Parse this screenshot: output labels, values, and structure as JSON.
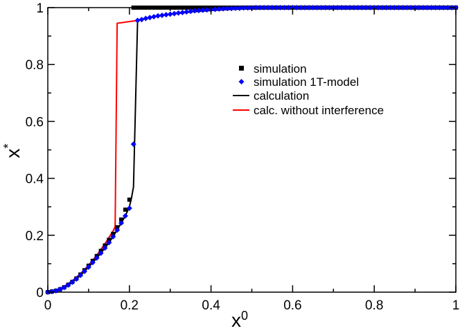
{
  "chart_data": {
    "type": "line",
    "title": "",
    "xlabel": "x",
    "xlabel_sup": "0",
    "ylabel": "x",
    "ylabel_sup": "*",
    "xlim": [
      0,
      1
    ],
    "ylim": [
      0,
      1
    ],
    "x_ticks": [
      0,
      0.2,
      0.4,
      0.6,
      0.8,
      1
    ],
    "x_tick_labels": [
      "0",
      "0.2",
      "0.4",
      "0.6",
      "0.8",
      "1"
    ],
    "y_ticks": [
      0,
      0.2,
      0.4,
      0.6,
      0.8,
      1
    ],
    "y_tick_labels": [
      "0",
      "0.2",
      "0.4",
      "0.6",
      "0.8",
      "1"
    ],
    "grid": false,
    "legend_position": "top-right",
    "series": [
      {
        "name": "simulation",
        "kind": "scatter",
        "marker": "square",
        "color": "#000000",
        "x": [
          0,
          0.01,
          0.02,
          0.03,
          0.04,
          0.05,
          0.06,
          0.07,
          0.08,
          0.09,
          0.1,
          0.11,
          0.12,
          0.13,
          0.14,
          0.15,
          0.16,
          0.17,
          0.18,
          0.19,
          0.2,
          0.21,
          0.22,
          0.23,
          0.24,
          0.25,
          0.26,
          0.27,
          0.28,
          0.29,
          0.3,
          0.31,
          0.32,
          0.33,
          0.34,
          0.35,
          0.36,
          0.37,
          0.38,
          0.39,
          0.4,
          0.41,
          0.42,
          0.43,
          0.44,
          0.45,
          0.46,
          0.47,
          0.48,
          0.49,
          0.5,
          0.51,
          0.52,
          0.53,
          0.54,
          0.55,
          0.56,
          0.57,
          0.58,
          0.59,
          0.6,
          0.61,
          0.62,
          0.63,
          0.64,
          0.65,
          0.66,
          0.67,
          0.68,
          0.69,
          0.7,
          0.71,
          0.72,
          0.73,
          0.74,
          0.75,
          0.76,
          0.77,
          0.78,
          0.79,
          0.8,
          0.81,
          0.82,
          0.83,
          0.84,
          0.85,
          0.86,
          0.87,
          0.88,
          0.89,
          0.9,
          0.91,
          0.92,
          0.93,
          0.94,
          0.95,
          0.96,
          0.97,
          0.98,
          0.99,
          1.0
        ],
        "y": [
          0,
          0.002,
          0.005,
          0.01,
          0.017,
          0.026,
          0.036,
          0.048,
          0.062,
          0.077,
          0.093,
          0.11,
          0.127,
          0.145,
          0.164,
          0.184,
          0.205,
          0.228,
          0.255,
          0.29,
          0.325,
          1,
          1,
          1,
          1,
          1,
          1,
          1,
          1,
          1,
          1,
          1,
          1,
          1,
          1,
          1,
          1,
          1,
          1,
          1,
          1,
          1,
          1,
          1,
          1,
          1,
          1,
          1,
          1,
          1,
          1,
          1,
          1,
          1,
          1,
          1,
          1,
          1,
          1,
          1,
          1,
          1,
          1,
          1,
          1,
          1,
          1,
          1,
          1,
          1,
          1,
          1,
          1,
          1,
          1,
          1,
          1,
          1,
          1,
          1,
          1,
          1,
          1,
          1,
          1,
          1,
          1,
          1,
          1,
          1,
          1,
          1,
          1,
          1,
          1,
          1,
          1,
          1,
          1,
          1,
          1
        ]
      },
      {
        "name": "simulation 1T-model",
        "kind": "scatter",
        "marker": "diamond",
        "color": "#0000ff",
        "x": [
          0,
          0.01,
          0.02,
          0.03,
          0.04,
          0.05,
          0.06,
          0.07,
          0.08,
          0.09,
          0.1,
          0.11,
          0.12,
          0.13,
          0.14,
          0.15,
          0.16,
          0.17,
          0.18,
          0.19,
          0.2,
          0.21,
          0.22,
          0.23,
          0.24,
          0.25,
          0.26,
          0.27,
          0.28,
          0.29,
          0.3,
          0.31,
          0.32,
          0.33,
          0.34,
          0.35,
          0.36,
          0.37,
          0.38,
          0.39,
          0.4,
          0.41,
          0.42,
          0.43,
          0.44,
          0.45,
          0.46,
          0.47,
          0.48,
          0.49,
          0.5,
          0.51,
          0.52,
          0.53,
          0.54,
          0.55,
          0.56,
          0.57,
          0.58,
          0.59,
          0.6,
          0.61,
          0.62,
          0.63,
          0.64,
          0.65,
          0.66,
          0.67,
          0.68,
          0.69,
          0.7,
          0.71,
          0.72,
          0.73,
          0.74,
          0.75,
          0.76,
          0.77,
          0.78,
          0.79,
          0.8,
          0.81,
          0.82,
          0.83,
          0.84,
          0.85,
          0.86,
          0.87,
          0.88,
          0.89,
          0.9,
          0.91,
          0.92,
          0.93,
          0.94,
          0.95,
          0.96,
          0.97,
          0.98,
          0.99,
          1.0
        ],
        "y": [
          0,
          0.002,
          0.005,
          0.01,
          0.016,
          0.025,
          0.035,
          0.046,
          0.059,
          0.073,
          0.088,
          0.104,
          0.12,
          0.137,
          0.155,
          0.174,
          0.195,
          0.218,
          0.243,
          0.268,
          0.295,
          0.52,
          0.955,
          0.958,
          0.962,
          0.965,
          0.968,
          0.971,
          0.973,
          0.975,
          0.977,
          0.979,
          0.981,
          0.983,
          0.985,
          0.987,
          0.989,
          0.99,
          0.991,
          0.992,
          0.993,
          0.994,
          0.995,
          0.996,
          0.997,
          0.997,
          0.998,
          0.998,
          0.999,
          0.999,
          0.999,
          1,
          1,
          1,
          1,
          1,
          1,
          1,
          1,
          1,
          1,
          1,
          1,
          1,
          1,
          1,
          1,
          1,
          1,
          1,
          1,
          1,
          1,
          1,
          1,
          1,
          1,
          1,
          1,
          1,
          1,
          1,
          1,
          1,
          1,
          1,
          1,
          1,
          1,
          1,
          1,
          1,
          1,
          1,
          1,
          1,
          1,
          1,
          1,
          1,
          1
        ]
      },
      {
        "name": "calculation",
        "kind": "line",
        "color": "#000000",
        "x": [
          0,
          0.02,
          0.04,
          0.06,
          0.08,
          0.1,
          0.12,
          0.14,
          0.16,
          0.18,
          0.19,
          0.2,
          0.205,
          0.21,
          0.22,
          0.25,
          0.3,
          0.35,
          0.4,
          0.45,
          0.5,
          0.55,
          0.6,
          0.7,
          0.8,
          0.9,
          1.0
        ],
        "y": [
          0,
          0.005,
          0.016,
          0.035,
          0.059,
          0.088,
          0.12,
          0.155,
          0.195,
          0.243,
          0.268,
          0.3,
          0.33,
          0.37,
          0.955,
          0.965,
          0.977,
          0.985,
          0.99,
          0.994,
          0.996,
          0.998,
          0.999,
          1,
          1,
          1,
          1
        ]
      },
      {
        "name": "calc. without interference",
        "kind": "line",
        "color": "#ff0000",
        "x": [
          0,
          0.02,
          0.04,
          0.06,
          0.08,
          0.1,
          0.12,
          0.14,
          0.16,
          0.165,
          0.17,
          0.22,
          0.25,
          0.3,
          0.35,
          0.4,
          0.45,
          0.5,
          0.55,
          0.6,
          0.7,
          0.8,
          0.9,
          1.0
        ],
        "y": [
          0,
          0.007,
          0.02,
          0.04,
          0.065,
          0.095,
          0.13,
          0.17,
          0.215,
          0.23,
          0.945,
          0.955,
          0.965,
          0.977,
          0.985,
          0.99,
          0.994,
          0.996,
          0.998,
          0.999,
          1,
          1,
          1,
          1
        ]
      }
    ]
  }
}
